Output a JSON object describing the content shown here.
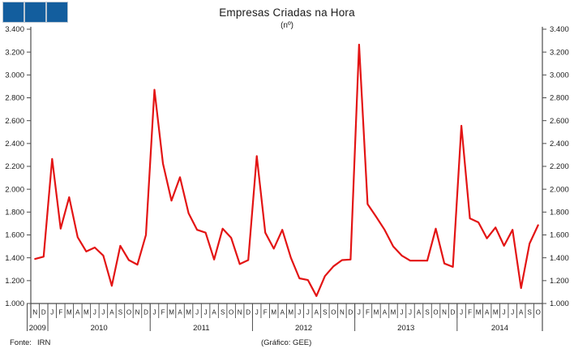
{
  "title": "Empresas Criadas na Hora",
  "subtitle": "(nº)",
  "logo": {
    "square_color": "#135e9e",
    "square_count": 3
  },
  "footer": {
    "source_label": "Fonte:",
    "source_value": "IRN",
    "credit": "(Gráfico: GEE)"
  },
  "colors": {
    "line": "#e31414",
    "axis": "#4d4d4d",
    "text": "#1a1a1a",
    "logo_blue": "#135e9e"
  },
  "chart_data": {
    "type": "line",
    "title": "Empresas Criadas na Hora",
    "unit": "(nº)",
    "ylim": [
      1000,
      3400
    ],
    "ytick_step": 200,
    "ytick_labels": [
      "1.000",
      "1.200",
      "1.400",
      "1.600",
      "1.800",
      "2.000",
      "2.200",
      "2.400",
      "2.600",
      "2.800",
      "3.000",
      "3.200",
      "3.400"
    ],
    "grid": false,
    "legend": "none",
    "x_month_letters": [
      "N",
      "D",
      "J",
      "F",
      "M",
      "A",
      "M",
      "J",
      "J",
      "A",
      "S",
      "O",
      "N",
      "D",
      "J",
      "F",
      "M",
      "A",
      "M",
      "J",
      "J",
      "A",
      "S",
      "O",
      "N",
      "D",
      "J",
      "F",
      "M",
      "A",
      "M",
      "J",
      "J",
      "A",
      "S",
      "O",
      "N",
      "D",
      "J",
      "F",
      "M",
      "A",
      "M",
      "J",
      "J",
      "A",
      "S",
      "O",
      "N",
      "D",
      "J",
      "F",
      "M",
      "A",
      "M",
      "J",
      "J",
      "A",
      "S",
      "O"
    ],
    "years": [
      {
        "label": "2009",
        "n_months": 2
      },
      {
        "label": "2010",
        "n_months": 12
      },
      {
        "label": "2011",
        "n_months": 12
      },
      {
        "label": "2012",
        "n_months": 12
      },
      {
        "label": "2013",
        "n_months": 12
      },
      {
        "label": "2014",
        "n_months": 10
      }
    ],
    "series": [
      {
        "name": "Empresas criadas na hora (nº)",
        "values": [
          1390,
          1410,
          2265,
          1655,
          1930,
          1580,
          1455,
          1490,
          1420,
          1155,
          1505,
          1380,
          1340,
          1600,
          2870,
          2225,
          1900,
          2105,
          1790,
          1645,
          1620,
          1385,
          1655,
          1575,
          1345,
          1380,
          2290,
          1620,
          1480,
          1645,
          1400,
          1220,
          1205,
          1065,
          1240,
          1325,
          1380,
          1385,
          3265,
          1870,
          1760,
          1645,
          1500,
          1420,
          1375,
          1375,
          1375,
          1655,
          1350,
          1320,
          2555,
          1745,
          1710,
          1570,
          1665,
          1505,
          1645,
          1135,
          1525,
          1685
        ]
      }
    ]
  }
}
